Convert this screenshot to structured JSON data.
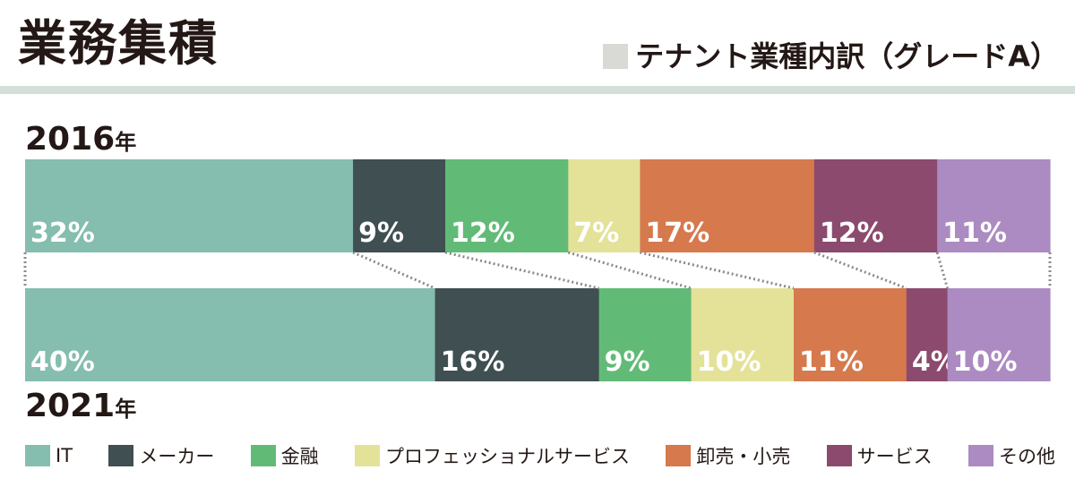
{
  "title": "業務集積",
  "subtitle": "テナント業種内訳（グレードA）",
  "year_top": {
    "num": "2016",
    "suffix": "年"
  },
  "year_bottom": {
    "num": "2021",
    "suffix": "年"
  },
  "chart_data": {
    "type": "bar",
    "orientation": "horizontal-stacked-100",
    "categories": [
      "2016年",
      "2021年"
    ],
    "series": [
      {
        "name": "IT",
        "color": "#85bdae",
        "values": [
          32,
          40
        ],
        "labels": [
          "32%",
          "40%"
        ]
      },
      {
        "name": "メーカー",
        "color": "#404f51",
        "values": [
          9,
          16
        ],
        "labels": [
          "9%",
          "16%"
        ]
      },
      {
        "name": "金融",
        "color": "#61bb77",
        "values": [
          12,
          9
        ],
        "labels": [
          "12%",
          "9%"
        ]
      },
      {
        "name": "プロフェッショナルサービス",
        "color": "#e4e299",
        "values": [
          7,
          10
        ],
        "labels": [
          "7%",
          "10%"
        ]
      },
      {
        "name": "卸売・小売",
        "color": "#d6794d",
        "values": [
          17,
          11
        ],
        "labels": [
          "17%",
          "11%"
        ]
      },
      {
        "name": "サービス",
        "color": "#8b4a6e",
        "values": [
          12,
          4
        ],
        "labels": [
          "12%",
          "4%"
        ]
      },
      {
        "name": "その他",
        "color": "#ab8bc1",
        "values": [
          11,
          10
        ],
        "labels": [
          "11%",
          "10%"
        ]
      }
    ],
    "legend_position": "bottom",
    "connector_style": "dotted"
  }
}
